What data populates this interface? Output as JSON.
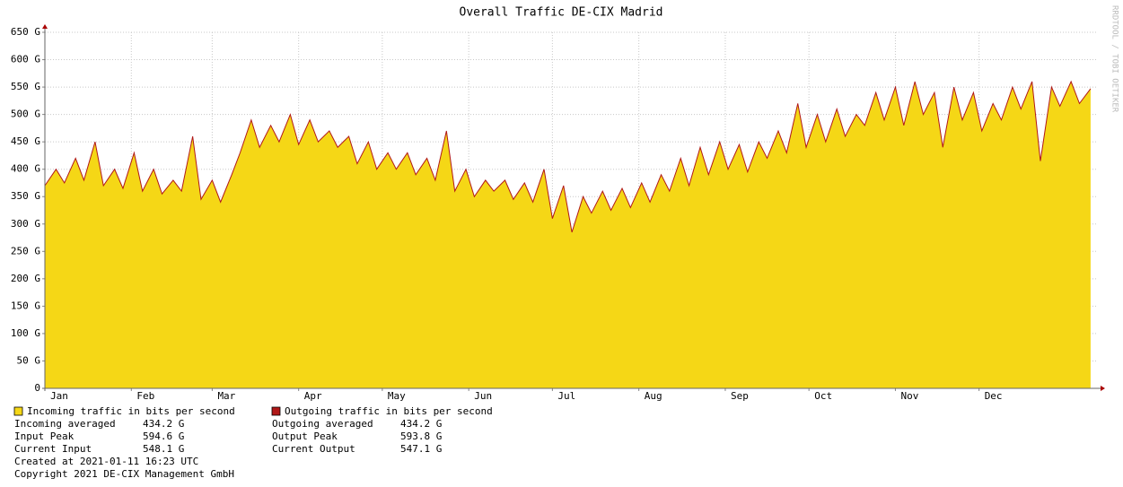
{
  "chart_data": {
    "type": "area",
    "title": "Overall Traffic DE-CIX Madrid",
    "watermark": "RRDTOOL / TOBI OETIKER",
    "x": [
      0,
      4,
      7,
      11,
      14,
      18,
      21,
      25,
      28,
      32,
      35,
      39,
      42,
      46,
      49,
      53,
      56,
      60,
      63,
      67,
      70,
      74,
      77,
      81,
      84,
      88,
      91,
      95,
      98,
      102,
      105,
      109,
      112,
      116,
      119,
      123,
      126,
      130,
      133,
      137,
      140,
      144,
      147,
      151,
      154,
      158,
      161,
      165,
      168,
      172,
      175,
      179,
      182,
      186,
      189,
      193,
      196,
      200,
      203,
      207,
      210,
      214,
      217,
      221,
      224,
      228,
      231,
      235,
      238,
      242,
      245,
      249,
      252,
      256,
      259,
      263,
      266,
      270,
      273,
      277,
      280,
      284,
      287,
      291,
      294,
      298,
      301,
      305,
      308,
      312,
      315,
      319,
      322,
      326,
      329,
      333,
      336,
      340,
      343,
      347,
      350,
      354,
      357,
      361,
      364,
      368,
      371,
      375
    ],
    "xlim": [
      0,
      376
    ],
    "xticks": [
      {
        "value": 0,
        "label": "Jan"
      },
      {
        "value": 31,
        "label": "Feb"
      },
      {
        "value": 60,
        "label": "Mar"
      },
      {
        "value": 91,
        "label": "Apr"
      },
      {
        "value": 121,
        "label": "May"
      },
      {
        "value": 152,
        "label": "Jun"
      },
      {
        "value": 182,
        "label": "Jul"
      },
      {
        "value": 213,
        "label": "Aug"
      },
      {
        "value": 244,
        "label": "Sep"
      },
      {
        "value": 274,
        "label": "Oct"
      },
      {
        "value": 305,
        "label": "Nov"
      },
      {
        "value": 335,
        "label": "Dec"
      }
    ],
    "ylim": [
      0,
      650
    ],
    "yticks": [
      0,
      {
        "value": 50,
        "label": "50 G"
      },
      {
        "value": 100,
        "label": "100 G"
      },
      {
        "value": 150,
        "label": "150 G"
      },
      {
        "value": 200,
        "label": "200 G"
      },
      {
        "value": 250,
        "label": "250 G"
      },
      {
        "value": 300,
        "label": "300 G"
      },
      {
        "value": 350,
        "label": "350 G"
      },
      {
        "value": 400,
        "label": "400 G"
      },
      {
        "value": 450,
        "label": "450 G"
      },
      {
        "value": 500,
        "label": "500 G"
      },
      {
        "value": 550,
        "label": "550 G"
      },
      {
        "value": 600,
        "label": "600 G"
      },
      {
        "value": 650,
        "label": "650 G"
      }
    ],
    "grid": true,
    "series": [
      {
        "name": "Incoming traffic in bits per second",
        "color": "#f5d716",
        "style": "area",
        "values": [
          370,
          400,
          375,
          420,
          380,
          450,
          370,
          400,
          365,
          430,
          360,
          400,
          355,
          380,
          360,
          460,
          345,
          380,
          340,
          390,
          430,
          490,
          440,
          480,
          450,
          500,
          445,
          490,
          450,
          470,
          440,
          460,
          410,
          450,
          400,
          430,
          400,
          430,
          390,
          420,
          380,
          470,
          360,
          400,
          350,
          380,
          360,
          380,
          345,
          375,
          340,
          400,
          310,
          370,
          285,
          350,
          320,
          360,
          325,
          365,
          330,
          375,
          340,
          390,
          360,
          420,
          370,
          440,
          390,
          450,
          400,
          445,
          395,
          450,
          420,
          470,
          430,
          520,
          440,
          500,
          450,
          510,
          460,
          500,
          480,
          540,
          490,
          550,
          480,
          560,
          500,
          540,
          440,
          550,
          490,
          540,
          470,
          520,
          490,
          550,
          510,
          560,
          415,
          550,
          515,
          560,
          520,
          548
        ]
      },
      {
        "name": "Outgoing traffic in bits per second",
        "color": "#b01818",
        "style": "line",
        "values": [
          370,
          400,
          375,
          420,
          380,
          450,
          370,
          400,
          365,
          430,
          360,
          400,
          355,
          380,
          360,
          460,
          345,
          380,
          340,
          390,
          430,
          490,
          440,
          480,
          450,
          500,
          445,
          490,
          450,
          470,
          440,
          460,
          410,
          450,
          400,
          430,
          400,
          430,
          390,
          420,
          380,
          470,
          360,
          400,
          350,
          380,
          360,
          380,
          345,
          375,
          340,
          400,
          310,
          370,
          285,
          350,
          320,
          360,
          325,
          365,
          330,
          375,
          340,
          390,
          360,
          420,
          370,
          440,
          390,
          450,
          400,
          445,
          395,
          450,
          420,
          470,
          430,
          520,
          440,
          500,
          450,
          510,
          460,
          500,
          480,
          540,
          490,
          550,
          480,
          560,
          500,
          540,
          440,
          550,
          490,
          540,
          470,
          520,
          490,
          550,
          510,
          560,
          415,
          550,
          515,
          560,
          520,
          547
        ]
      }
    ],
    "stats": [
      [
        {
          "label": "Incoming averaged",
          "value": "434.2 G"
        },
        {
          "label": "Input Peak",
          "value": "594.6 G"
        },
        {
          "label": "Current Input",
          "value": "548.1 G"
        }
      ],
      [
        {
          "label": "Outgoing averaged",
          "value": "434.2 G"
        },
        {
          "label": "Output Peak",
          "value": "593.8 G"
        },
        {
          "label": "Current Output",
          "value": "547.1 G"
        }
      ]
    ],
    "footer": [
      "Created at 2021-01-11 16:23 UTC",
      "Copyright 2021 DE-CIX Management GmbH"
    ]
  }
}
